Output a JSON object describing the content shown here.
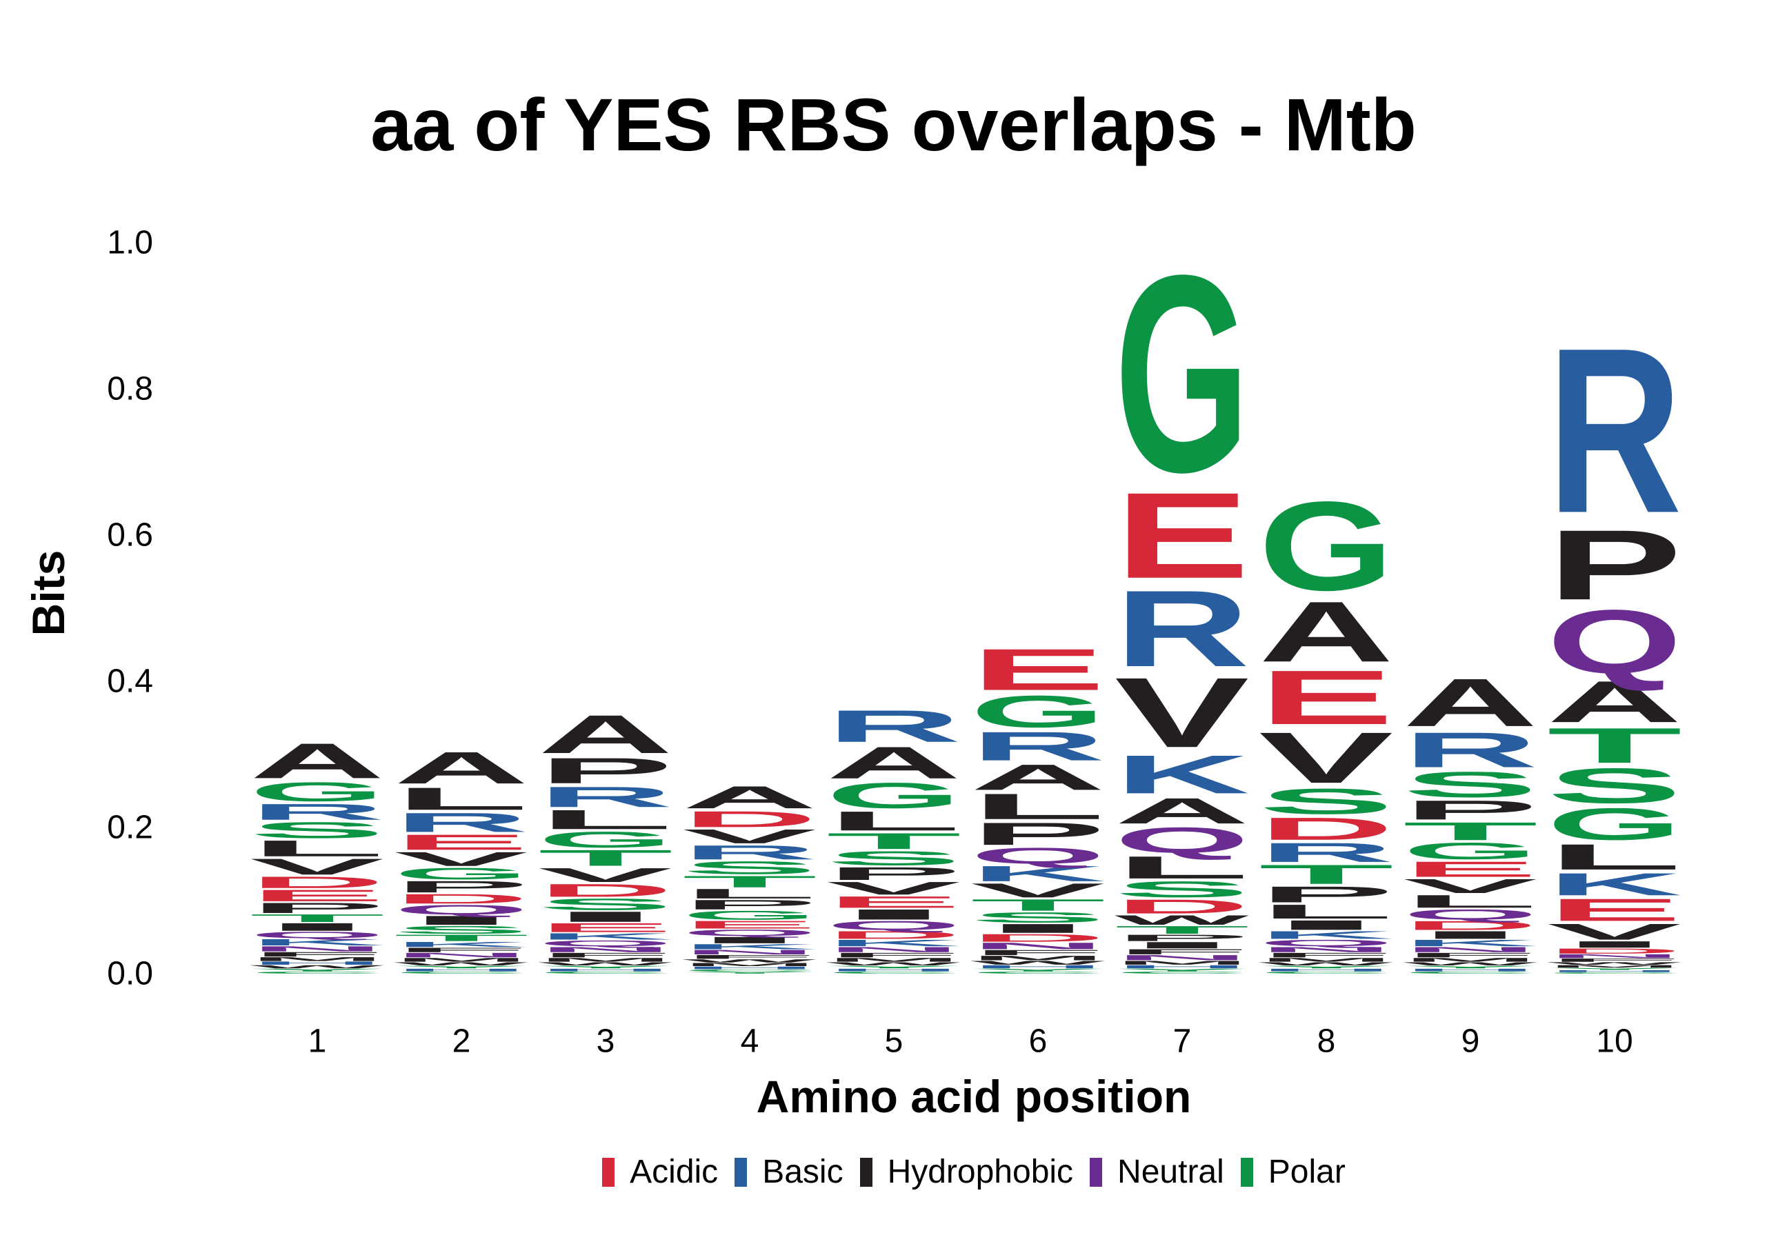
{
  "chart_data": {
    "type": "sequence-logo",
    "title": "aa of YES RBS overlaps - Mtb",
    "xlabel": "Amino acid position",
    "ylabel": "Bits",
    "ylim": [
      0,
      1.0
    ],
    "y_ticks": [
      "0.0",
      "0.2",
      "0.4",
      "0.6",
      "0.8",
      "1.0"
    ],
    "positions": [
      "1",
      "2",
      "3",
      "4",
      "5",
      "6",
      "7",
      "8",
      "9",
      "10"
    ],
    "legend": [
      {
        "label": "Acidic",
        "color": "#d62839"
      },
      {
        "label": "Basic",
        "color": "#285ea0"
      },
      {
        "label": "Hydrophobic",
        "color": "#231f20"
      },
      {
        "label": "Neutral",
        "color": "#6a2c91"
      },
      {
        "label": "Polar",
        "color": "#0b9444"
      }
    ],
    "letter_classes": {
      "D": "Acidic",
      "E": "Acidic",
      "K": "Basic",
      "R": "Basic",
      "H": "Basic",
      "A": "Hydrophobic",
      "V": "Hydrophobic",
      "L": "Hydrophobic",
      "I": "Hydrophobic",
      "P": "Hydrophobic",
      "F": "Hydrophobic",
      "M": "Hydrophobic",
      "W": "Hydrophobic",
      "Q": "Neutral",
      "N": "Neutral",
      "G": "Polar",
      "S": "Polar",
      "T": "Polar",
      "Y": "Polar",
      "C": "Polar"
    },
    "stacks": [
      [
        [
          "A",
          0.055
        ],
        [
          "V",
          0.025
        ],
        [
          "G",
          0.03
        ],
        [
          "L",
          0.025
        ],
        [
          "S",
          0.025
        ],
        [
          "R",
          0.025
        ],
        [
          "E",
          0.018
        ],
        [
          "P",
          0.016
        ],
        [
          "I",
          0.012
        ],
        [
          "D",
          0.018
        ],
        [
          "T",
          0.012
        ],
        [
          "K",
          0.01
        ],
        [
          "Q",
          0.01
        ],
        [
          "N",
          0.008
        ],
        [
          "F",
          0.007
        ],
        [
          "M",
          0.006
        ],
        [
          "W",
          0.005
        ],
        [
          "H",
          0.005
        ],
        [
          "Y",
          0.004
        ],
        [
          "C",
          0.003
        ]
      ],
      [
        [
          "A",
          0.05
        ],
        [
          "L",
          0.035
        ],
        [
          "R",
          0.03
        ],
        [
          "E",
          0.024
        ],
        [
          "V",
          0.022
        ],
        [
          "P",
          0.018
        ],
        [
          "G",
          0.018
        ],
        [
          "Q",
          0.015
        ],
        [
          "I",
          0.014
        ],
        [
          "S",
          0.012
        ],
        [
          "D",
          0.015
        ],
        [
          "T",
          0.01
        ],
        [
          "K",
          0.008
        ],
        [
          "N",
          0.007
        ],
        [
          "F",
          0.007
        ],
        [
          "M",
          0.006
        ],
        [
          "W",
          0.005
        ],
        [
          "H",
          0.004
        ],
        [
          "Y",
          0.004
        ],
        [
          "C",
          0.003
        ]
      ],
      [
        [
          "A",
          0.06
        ],
        [
          "P",
          0.04
        ],
        [
          "L",
          0.03
        ],
        [
          "R",
          0.032
        ],
        [
          "T",
          0.025
        ],
        [
          "G",
          0.025
        ],
        [
          "V",
          0.022
        ],
        [
          "D",
          0.02
        ],
        [
          "S",
          0.018
        ],
        [
          "I",
          0.016
        ],
        [
          "E",
          0.014
        ],
        [
          "K",
          0.01
        ],
        [
          "Q",
          0.009
        ],
        [
          "N",
          0.008
        ],
        [
          "F",
          0.007
        ],
        [
          "M",
          0.006
        ],
        [
          "W",
          0.005
        ],
        [
          "H",
          0.004
        ],
        [
          "Y",
          0.004
        ],
        [
          "C",
          0.003
        ]
      ],
      [
        [
          "A",
          0.035
        ],
        [
          "D",
          0.025
        ],
        [
          "R",
          0.022
        ],
        [
          "V",
          0.022
        ],
        [
          "S",
          0.02
        ],
        [
          "T",
          0.018
        ],
        [
          "P",
          0.015
        ],
        [
          "L",
          0.015
        ],
        [
          "G",
          0.014
        ],
        [
          "E",
          0.012
        ],
        [
          "I",
          0.01
        ],
        [
          "Q",
          0.01
        ],
        [
          "K",
          0.008
        ],
        [
          "N",
          0.007
        ],
        [
          "F",
          0.006
        ],
        [
          "M",
          0.005
        ],
        [
          "W",
          0.005
        ],
        [
          "H",
          0.004
        ],
        [
          "Y",
          0.003
        ],
        [
          "C",
          0.003
        ]
      ],
      [
        [
          "A",
          0.05
        ],
        [
          "R",
          0.05
        ],
        [
          "G",
          0.04
        ],
        [
          "L",
          0.03
        ],
        [
          "T",
          0.025
        ],
        [
          "S",
          0.022
        ],
        [
          "V",
          0.02
        ],
        [
          "P",
          0.02
        ],
        [
          "E",
          0.018
        ],
        [
          "I",
          0.016
        ],
        [
          "Q",
          0.014
        ],
        [
          "D",
          0.012
        ],
        [
          "K",
          0.01
        ],
        [
          "N",
          0.008
        ],
        [
          "F",
          0.007
        ],
        [
          "M",
          0.006
        ],
        [
          "W",
          0.005
        ],
        [
          "H",
          0.004
        ],
        [
          "Y",
          0.004
        ],
        [
          "C",
          0.003
        ]
      ],
      [
        [
          "E",
          0.065
        ],
        [
          "G",
          0.05
        ],
        [
          "R",
          0.045
        ],
        [
          "L",
          0.04
        ],
        [
          "A",
          0.04
        ],
        [
          "P",
          0.035
        ],
        [
          "Q",
          0.025
        ],
        [
          "K",
          0.024
        ],
        [
          "V",
          0.022
        ],
        [
          "T",
          0.018
        ],
        [
          "S",
          0.016
        ],
        [
          "I",
          0.014
        ],
        [
          "D",
          0.012
        ],
        [
          "N",
          0.01
        ],
        [
          "F",
          0.008
        ],
        [
          "M",
          0.007
        ],
        [
          "W",
          0.006
        ],
        [
          "H",
          0.005
        ],
        [
          "Y",
          0.004
        ],
        [
          "C",
          0.003
        ]
      ],
      [
        [
          "G",
          0.31
        ],
        [
          "E",
          0.135
        ],
        [
          "R",
          0.12
        ],
        [
          "V",
          0.11
        ],
        [
          "K",
          0.06
        ],
        [
          "Q",
          0.04
        ],
        [
          "A",
          0.04
        ],
        [
          "L",
          0.035
        ],
        [
          "S",
          0.025
        ],
        [
          "D",
          0.022
        ],
        [
          "W",
          0.015
        ],
        [
          "T",
          0.012
        ],
        [
          "I",
          0.01
        ],
        [
          "P",
          0.01
        ],
        [
          "N",
          0.008
        ],
        [
          "F",
          0.008
        ],
        [
          "M",
          0.006
        ],
        [
          "H",
          0.005
        ],
        [
          "Y",
          0.004
        ],
        [
          "C",
          0.003
        ]
      ],
      [
        [
          "G",
          0.14
        ],
        [
          "A",
          0.095
        ],
        [
          "E",
          0.085
        ],
        [
          "V",
          0.08
        ],
        [
          "S",
          0.04
        ],
        [
          "D",
          0.035
        ],
        [
          "T",
          0.03
        ],
        [
          "R",
          0.03
        ],
        [
          "P",
          0.025
        ],
        [
          "L",
          0.022
        ],
        [
          "I",
          0.015
        ],
        [
          "K",
          0.012
        ],
        [
          "Q",
          0.01
        ],
        [
          "N",
          0.008
        ],
        [
          "F",
          0.007
        ],
        [
          "M",
          0.006
        ],
        [
          "W",
          0.005
        ],
        [
          "H",
          0.004
        ],
        [
          "Y",
          0.004
        ],
        [
          "C",
          0.003
        ]
      ],
      [
        [
          "A",
          0.075
        ],
        [
          "R",
          0.055
        ],
        [
          "S",
          0.04
        ],
        [
          "P",
          0.03
        ],
        [
          "T",
          0.028
        ],
        [
          "G",
          0.026
        ],
        [
          "E",
          0.024
        ],
        [
          "V",
          0.022
        ],
        [
          "L",
          0.02
        ],
        [
          "Q",
          0.016
        ],
        [
          "D",
          0.014
        ],
        [
          "I",
          0.012
        ],
        [
          "K",
          0.01
        ],
        [
          "N",
          0.008
        ],
        [
          "F",
          0.007
        ],
        [
          "M",
          0.006
        ],
        [
          "W",
          0.005
        ],
        [
          "H",
          0.004
        ],
        [
          "Y",
          0.004
        ],
        [
          "C",
          0.003
        ]
      ],
      [
        [
          "R",
          0.26
        ],
        [
          "P",
          0.11
        ],
        [
          "Q",
          0.1
        ],
        [
          "A",
          0.065
        ],
        [
          "S",
          0.055
        ],
        [
          "G",
          0.05
        ],
        [
          "T",
          0.055
        ],
        [
          "L",
          0.04
        ],
        [
          "E",
          0.035
        ],
        [
          "K",
          0.035
        ],
        [
          "V",
          0.025
        ],
        [
          "I",
          0.01
        ],
        [
          "D",
          0.008
        ],
        [
          "N",
          0.006
        ],
        [
          "F",
          0.005
        ],
        [
          "M",
          0.004
        ],
        [
          "W",
          0.004
        ],
        [
          "H",
          0.003
        ],
        [
          "Y",
          0.003
        ],
        [
          "C",
          0.002
        ]
      ]
    ]
  }
}
